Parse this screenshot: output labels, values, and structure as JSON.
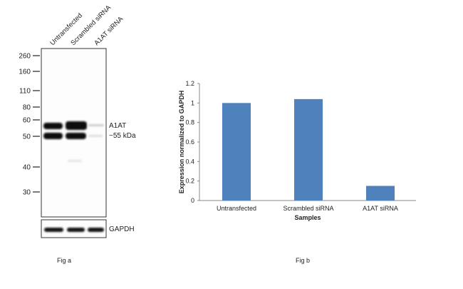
{
  "fig_a": {
    "caption": "Fig a",
    "lanes": [
      "Untransfected",
      "Scrambled siRNA",
      "A1AT siRNA"
    ],
    "markers": [
      "260",
      "160",
      "110",
      "80",
      "60",
      "50",
      "40",
      "30"
    ],
    "band_label": "A1AT",
    "band_size": "~55 kDa",
    "loading_control": "GAPDH"
  },
  "fig_b": {
    "caption": "Fig b"
  },
  "chart_data": {
    "type": "bar",
    "categories": [
      "Untransfected",
      "Scrambled siRNA",
      "A1AT siRNA"
    ],
    "values": [
      1.0,
      1.04,
      0.15
    ],
    "title": "",
    "xlabel": "Samples",
    "ylabel": "Expression normalized to GAPDH",
    "ylim": [
      0,
      1.2
    ],
    "yticks": [
      "0",
      "0.2",
      "0.4",
      "0.6",
      "0.8",
      "1",
      "1.2"
    ],
    "grid": false,
    "bar_color": "#4f81bd"
  }
}
